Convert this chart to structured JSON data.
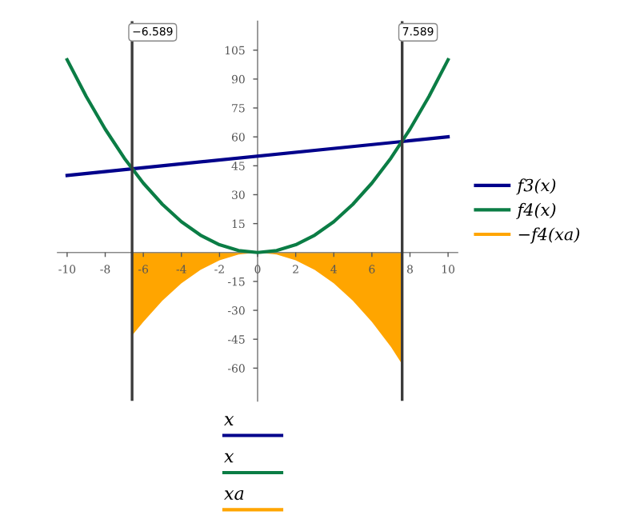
{
  "chart_data": {
    "type": "line",
    "xlim": [
      -10.5,
      10.5
    ],
    "ylim": [
      -77,
      120
    ],
    "xticks": [
      -10,
      -8,
      -6,
      -4,
      -2,
      0,
      2,
      4,
      6,
      8,
      10
    ],
    "yticks": [
      -60,
      -45,
      -30,
      -15,
      15,
      30,
      45,
      60,
      75,
      90,
      105
    ],
    "series": [
      {
        "name": "f3(x)",
        "color": "#00008b",
        "x": [
          -10,
          10
        ],
        "values": [
          40,
          60
        ]
      },
      {
        "name": "f4(x)",
        "color": "#0b7d45",
        "x": [
          -10,
          -9,
          -8,
          -7,
          -6,
          -5,
          -4,
          -3,
          -2,
          -1,
          0,
          1,
          2,
          3,
          4,
          5,
          6,
          7,
          8,
          9,
          10
        ],
        "values": [
          100,
          81,
          64,
          49,
          36,
          25,
          16,
          9,
          4,
          1,
          0,
          1,
          4,
          9,
          16,
          25,
          36,
          49,
          64,
          81,
          100
        ]
      },
      {
        "name": "−f4(xa)",
        "type": "area",
        "color": "#ffa500",
        "x": [
          -6.589,
          -6,
          -5,
          -4,
          -3,
          -2,
          -1,
          0,
          1,
          2,
          3,
          4,
          5,
          6,
          7,
          7.589
        ],
        "values": [
          -43,
          -36,
          -25,
          -16,
          -9,
          -4,
          -1,
          0,
          -1,
          -4,
          -9,
          -16,
          -25,
          -36,
          -49,
          -58
        ]
      }
    ],
    "ref_lines": [
      {
        "axis": "x",
        "value": -6.589,
        "label": "−6.589",
        "color": "#3a3a3a"
      },
      {
        "axis": "x",
        "value": 7.589,
        "label": "7.589",
        "color": "#3a3a3a"
      }
    ],
    "annotations": [
      "x",
      "x",
      "xa"
    ],
    "legend": "right",
    "grid": false
  }
}
